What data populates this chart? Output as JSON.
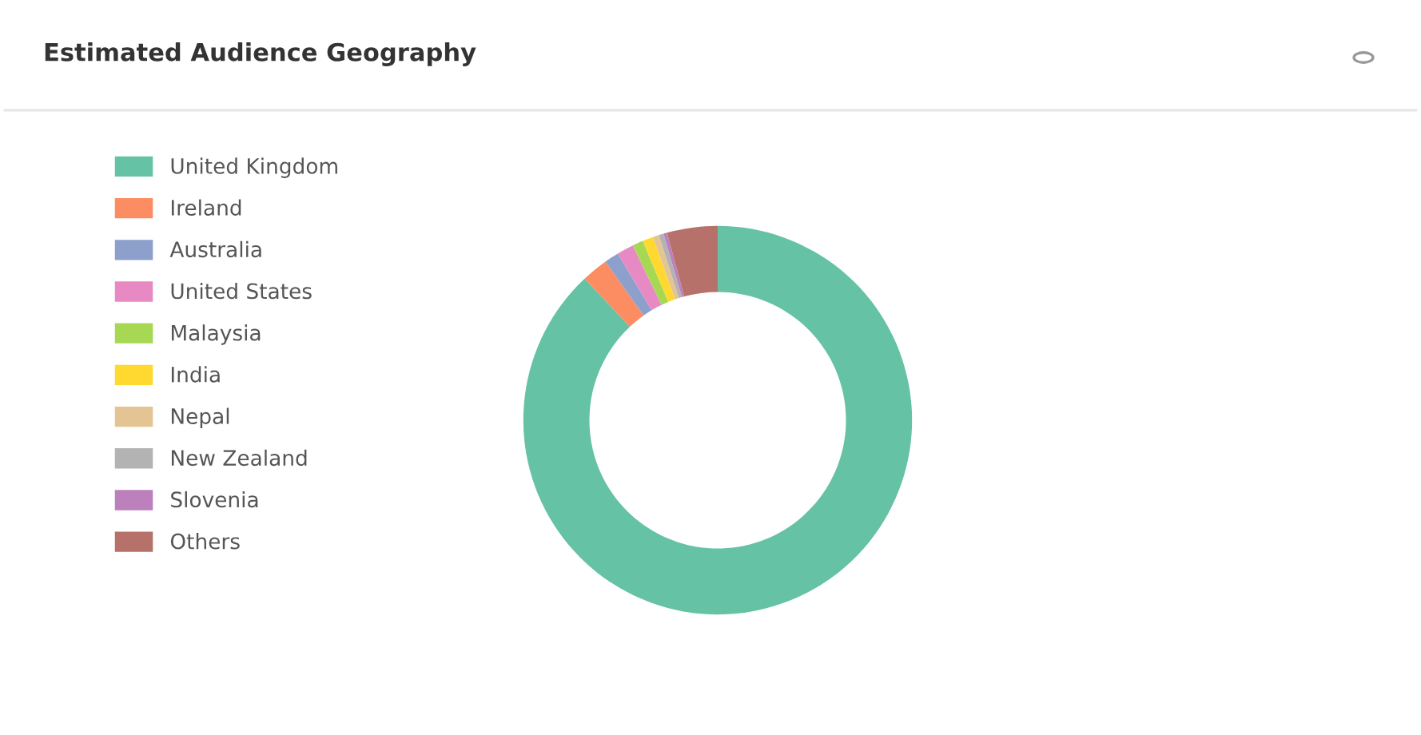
{
  "chart_data": {
    "type": "donut",
    "title": "Estimated Audience Geography",
    "categories": [
      "United Kingdom",
      "Ireland",
      "Australia",
      "United States",
      "Malaysia",
      "India",
      "Nepal",
      "New Zealand",
      "Slovenia",
      "Others"
    ],
    "values": [
      88.0,
      2.2,
      1.2,
      1.4,
      0.9,
      0.9,
      0.5,
      0.4,
      0.3,
      4.2
    ],
    "colors": [
      "#66c2a5",
      "#fc8d62",
      "#8da0cb",
      "#e78ac3",
      "#a6d854",
      "#ffd92f",
      "#e5c494",
      "#b3b3b3",
      "#bc80bd",
      "#b5716a"
    ],
    "legend": "left"
  }
}
